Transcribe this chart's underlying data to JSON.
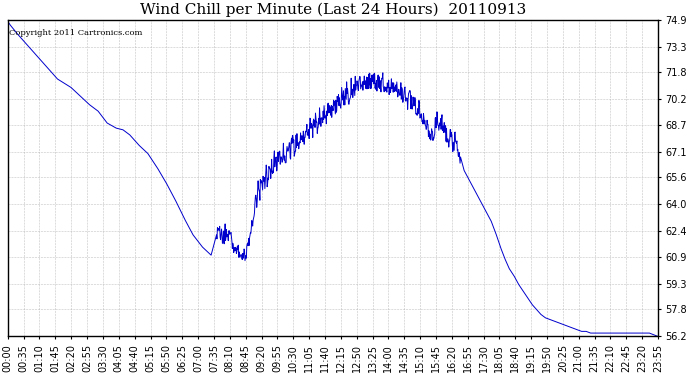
{
  "title": "Wind Chill per Minute (Last 24 Hours)  20110913",
  "copyright_text": "Copyright 2011 Cartronics.com",
  "line_color": "#0000cc",
  "background_color": "#ffffff",
  "grid_color": "#aaaaaa",
  "ylim": [
    56.2,
    74.9
  ],
  "yticks": [
    56.2,
    57.8,
    59.3,
    60.9,
    62.4,
    64.0,
    65.6,
    67.1,
    68.7,
    70.2,
    71.8,
    73.3,
    74.9
  ],
  "title_fontsize": 11,
  "tick_fontsize": 7,
  "x_tick_labels": [
    "00:00",
    "00:35",
    "01:10",
    "01:45",
    "02:20",
    "02:55",
    "03:30",
    "04:05",
    "04:40",
    "05:15",
    "05:50",
    "06:25",
    "07:00",
    "07:35",
    "08:10",
    "08:45",
    "09:20",
    "09:55",
    "10:30",
    "11:05",
    "11:40",
    "12:15",
    "12:50",
    "13:25",
    "14:00",
    "14:35",
    "15:10",
    "15:45",
    "16:20",
    "16:55",
    "17:30",
    "18:05",
    "18:40",
    "19:15",
    "19:50",
    "20:25",
    "21:00",
    "21:35",
    "22:10",
    "22:45",
    "23:20",
    "23:55"
  ],
  "num_points": 1440,
  "key_points": {
    "0": 74.8,
    "5": 74.6,
    "20": 74.1,
    "50": 73.2,
    "80": 72.3,
    "110": 71.4,
    "140": 70.9,
    "160": 70.4,
    "180": 69.9,
    "200": 69.5,
    "220": 68.8,
    "240": 68.5,
    "255": 68.4,
    "270": 68.1,
    "290": 67.5,
    "310": 67.0,
    "330": 66.2,
    "350": 65.3,
    "370": 64.3,
    "390": 63.2,
    "410": 62.2,
    "430": 61.5,
    "450": 61.0,
    "465": 62.5,
    "467": 62.2,
    "469": 62.7,
    "471": 62.1,
    "473": 62.4,
    "475": 61.8,
    "477": 62.3,
    "479": 61.9,
    "481": 62.5,
    "483": 62.0,
    "485": 62.3,
    "487": 61.9,
    "489": 62.4,
    "491": 62.1,
    "493": 62.5,
    "495": 62.2,
    "497": 61.5,
    "500": 61.3,
    "503": 61.5,
    "506": 61.2,
    "509": 61.4,
    "512": 61.0,
    "515": 60.9,
    "518": 61.2,
    "521": 60.8,
    "524": 61.1,
    "527": 60.9,
    "530": 61.3,
    "535": 62.0,
    "540": 62.8,
    "545": 63.5,
    "548": 64.5,
    "551": 63.8,
    "554": 65.0,
    "557": 64.3,
    "560": 65.5,
    "563": 64.9,
    "566": 65.8,
    "569": 65.0,
    "572": 66.0,
    "575": 65.3,
    "578": 66.2,
    "581": 65.6,
    "584": 66.5,
    "587": 65.9,
    "590": 66.8,
    "595": 66.2,
    "600": 67.0,
    "605": 66.5,
    "610": 67.3,
    "615": 66.8,
    "620": 67.5,
    "625": 67.0,
    "630": 67.8,
    "635": 67.2,
    "640": 68.0,
    "645": 67.5,
    "650": 68.3,
    "655": 67.8,
    "660": 68.5,
    "665": 68.0,
    "670": 68.8,
    "675": 68.3,
    "680": 69.0,
    "685": 68.5,
    "690": 69.3,
    "695": 68.8,
    "700": 69.5,
    "705": 69.0,
    "710": 69.8,
    "715": 69.3,
    "720": 70.0,
    "725": 69.5,
    "730": 70.3,
    "735": 69.8,
    "740": 70.6,
    "745": 70.1,
    "750": 70.8,
    "755": 70.3,
    "760": 71.0,
    "765": 70.5,
    "770": 71.2,
    "775": 70.7,
    "780": 71.3,
    "785": 70.9,
    "790": 71.4,
    "795": 71.0,
    "800": 71.5,
    "805": 71.1,
    "810": 71.5,
    "815": 71.0,
    "820": 71.4,
    "825": 70.9,
    "830": 71.3,
    "835": 70.8,
    "840": 71.2,
    "845": 70.7,
    "850": 71.0,
    "855": 70.6,
    "860": 70.9,
    "865": 70.4,
    "870": 70.7,
    "875": 70.2,
    "880": 70.5,
    "885": 70.0,
    "890": 70.3,
    "895": 69.8,
    "900": 70.0,
    "905": 69.5,
    "910": 69.7,
    "915": 69.2,
    "920": 69.0,
    "925": 68.6,
    "930": 68.4,
    "940": 68.1,
    "950": 69.0,
    "955": 68.5,
    "960": 68.9,
    "965": 68.4,
    "970": 68.2,
    "975": 67.8,
    "980": 68.0,
    "985": 67.5,
    "990": 67.8,
    "995": 67.2,
    "1000": 67.0,
    "1010": 66.0,
    "1020": 65.5,
    "1030": 65.0,
    "1040": 64.5,
    "1050": 64.0,
    "1060": 63.5,
    "1070": 63.0,
    "1080": 62.3,
    "1090": 61.5,
    "1100": 60.8,
    "1110": 60.2,
    "1120": 59.8,
    "1130": 59.3,
    "1140": 58.9,
    "1150": 58.5,
    "1160": 58.1,
    "1170": 57.8,
    "1180": 57.5,
    "1190": 57.3,
    "1200": 57.2,
    "1210": 57.1,
    "1220": 57.0,
    "1230": 56.9,
    "1240": 56.8,
    "1250": 56.7,
    "1260": 56.6,
    "1270": 56.5,
    "1280": 56.5,
    "1290": 56.4,
    "1300": 56.4,
    "1310": 56.4,
    "1320": 56.4,
    "1330": 56.4,
    "1340": 56.4,
    "1350": 56.4,
    "1360": 56.4,
    "1370": 56.4,
    "1380": 56.4,
    "1390": 56.4,
    "1400": 56.4,
    "1410": 56.4,
    "1420": 56.4,
    "1430": 56.3,
    "1439": 56.2
  }
}
